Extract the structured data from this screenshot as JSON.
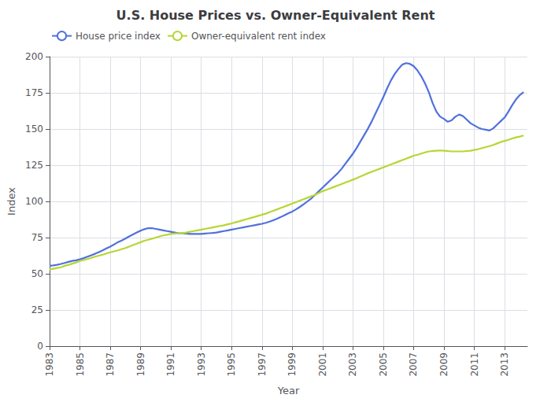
{
  "chart_data": {
    "type": "line",
    "title": "U.S. House Prices vs. Owner-Equivalent Rent",
    "xlabel": "Year",
    "ylabel": "Index",
    "xlim": [
      1983.0,
      2014.5
    ],
    "xticks": [
      1983,
      1985,
      1987,
      1989,
      1991,
      1993,
      1995,
      1997,
      1999,
      2001,
      2003,
      2005,
      2007,
      2009,
      2011,
      2013
    ],
    "ylim": [
      0,
      200
    ],
    "yticks": [
      0,
      25,
      50,
      75,
      100,
      125,
      150,
      175,
      200
    ],
    "grid": true,
    "legend": "upper left",
    "x": [
      1983.0,
      1983.25,
      1983.5,
      1983.75,
      1984.0,
      1984.25,
      1984.5,
      1984.75,
      1985.0,
      1985.25,
      1985.5,
      1985.75,
      1986.0,
      1986.25,
      1986.5,
      1986.75,
      1987.0,
      1987.25,
      1987.5,
      1987.75,
      1988.0,
      1988.25,
      1988.5,
      1988.75,
      1989.0,
      1989.25,
      1989.5,
      1989.75,
      1990.0,
      1990.25,
      1990.5,
      1990.75,
      1991.0,
      1991.25,
      1991.5,
      1991.75,
      1992.0,
      1992.25,
      1992.5,
      1992.75,
      1993.0,
      1993.25,
      1993.5,
      1993.75,
      1994.0,
      1994.25,
      1994.5,
      1994.75,
      1995.0,
      1995.25,
      1995.5,
      1995.75,
      1996.0,
      1996.25,
      1996.5,
      1996.75,
      1997.0,
      1997.25,
      1997.5,
      1997.75,
      1998.0,
      1998.25,
      1998.5,
      1998.75,
      1999.0,
      1999.25,
      1999.5,
      1999.75,
      2000.0,
      2000.25,
      2000.5,
      2000.75,
      2001.0,
      2001.25,
      2001.5,
      2001.75,
      2002.0,
      2002.25,
      2002.5,
      2002.75,
      2003.0,
      2003.25,
      2003.5,
      2003.75,
      2004.0,
      2004.25,
      2004.5,
      2004.75,
      2005.0,
      2005.25,
      2005.5,
      2005.75,
      2006.0,
      2006.25,
      2006.5,
      2006.75,
      2007.0,
      2007.25,
      2007.5,
      2007.75,
      2008.0,
      2008.25,
      2008.5,
      2008.75,
      2009.0,
      2009.25,
      2009.5,
      2009.75,
      2010.0,
      2010.25,
      2010.5,
      2010.75,
      2011.0,
      2011.25,
      2011.5,
      2011.75,
      2012.0,
      2012.25,
      2012.5,
      2012.75,
      2013.0,
      2013.25,
      2013.5,
      2013.75,
      2014.0,
      2014.25
    ],
    "series": [
      {
        "name": "House price index",
        "values": [
          55.5,
          55.8,
          56.2,
          56.8,
          57.5,
          58.2,
          58.9,
          59.3,
          60.0,
          60.8,
          61.8,
          62.8,
          63.8,
          65.0,
          66.2,
          67.5,
          68.8,
          70.2,
          71.8,
          73.0,
          74.3,
          75.8,
          77.2,
          78.5,
          79.8,
          80.8,
          81.5,
          81.5,
          81.0,
          80.5,
          80.0,
          79.5,
          79.0,
          78.5,
          78.0,
          78.0,
          77.8,
          77.5,
          77.5,
          77.5,
          77.5,
          77.8,
          78.0,
          78.2,
          78.5,
          79.0,
          79.5,
          80.0,
          80.5,
          81.0,
          81.5,
          82.0,
          82.5,
          83.0,
          83.5,
          84.0,
          84.5,
          85.2,
          86.0,
          87.0,
          88.0,
          89.2,
          90.5,
          91.8,
          93.0,
          94.5,
          96.2,
          98.0,
          100.0,
          102.0,
          104.5,
          107.0,
          109.5,
          112.0,
          114.5,
          117.0,
          119.5,
          122.5,
          126.0,
          129.5,
          133.0,
          137.0,
          141.5,
          146.0,
          150.5,
          155.5,
          161.0,
          166.5,
          172.0,
          178.0,
          183.5,
          188.0,
          191.5,
          194.5,
          195.5,
          195.0,
          193.5,
          190.5,
          186.5,
          181.5,
          175.5,
          168.0,
          162.0,
          158.5,
          157.0,
          155.0,
          156.0,
          158.5,
          160.0,
          159.0,
          156.5,
          154.0,
          152.5,
          151.0,
          150.0,
          149.5,
          149.0,
          150.5,
          153.0,
          155.5,
          158.0,
          162.0,
          166.5,
          170.5,
          173.5,
          175.5
        ]
      },
      {
        "name": "Owner-equivalent rent index",
        "values": [
          53.0,
          53.5,
          54.0,
          54.5,
          55.5,
          56.2,
          57.0,
          57.8,
          58.8,
          59.5,
          60.2,
          61.0,
          61.8,
          62.5,
          63.2,
          64.0,
          64.8,
          65.5,
          66.2,
          67.0,
          67.8,
          68.8,
          69.8,
          70.8,
          71.8,
          72.8,
          73.5,
          74.2,
          75.0,
          75.8,
          76.5,
          77.0,
          77.5,
          77.8,
          78.0,
          78.2,
          78.5,
          79.0,
          79.5,
          80.0,
          80.5,
          81.0,
          81.5,
          82.0,
          82.5,
          83.0,
          83.5,
          84.2,
          84.8,
          85.5,
          86.2,
          87.0,
          87.8,
          88.5,
          89.2,
          90.0,
          90.8,
          91.5,
          92.5,
          93.5,
          94.5,
          95.5,
          96.5,
          97.5,
          98.5,
          99.5,
          100.5,
          101.5,
          102.5,
          103.5,
          104.5,
          105.8,
          107.0,
          108.0,
          109.0,
          110.0,
          111.0,
          112.0,
          113.0,
          114.0,
          115.0,
          116.0,
          117.2,
          118.3,
          119.5,
          120.5,
          121.5,
          122.5,
          123.5,
          124.5,
          125.5,
          126.5,
          127.5,
          128.5,
          129.5,
          130.5,
          131.5,
          132.2,
          133.0,
          133.8,
          134.5,
          134.8,
          135.0,
          135.2,
          135.0,
          134.8,
          134.5,
          134.5,
          134.5,
          134.5,
          134.8,
          135.0,
          135.5,
          136.0,
          136.8,
          137.5,
          138.2,
          139.0,
          140.0,
          141.0,
          141.8,
          142.5,
          143.5,
          144.2,
          144.8,
          145.5
        ]
      }
    ]
  }
}
